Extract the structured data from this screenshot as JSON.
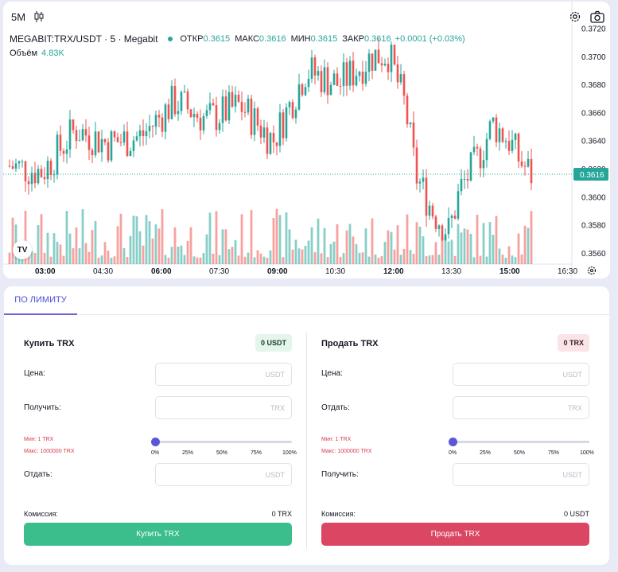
{
  "toolbar": {
    "interval": "5M",
    "candles_icon": "candlestick-icon",
    "settings_icon": "gear-icon",
    "snapshot_icon": "camera-icon"
  },
  "legend": {
    "symbol": "MEGABIT:TRX/USDT · 5 · Megabit",
    "open_label": "ОТКР",
    "open_value": "0.3615",
    "high_label": "МАКС",
    "high_value": "0.3616",
    "low_label": "МИН",
    "low_value": "0.3615",
    "close_label": "ЗАКР",
    "close_value": "0.3616",
    "change": "+0.0001 (+0.03%)",
    "volume_label": "Объём",
    "volume_value": "4.83K"
  },
  "colors": {
    "up": "#26a69a",
    "down": "#ef5350",
    "buy_button": "#3bbd8c",
    "sell_button": "#db4663",
    "accent": "#5b56d8"
  },
  "chart_data": {
    "type": "candlestick",
    "price_axis_labels": [
      "0.3720",
      "0.3700",
      "0.3680",
      "0.3660",
      "0.3640",
      "0.3620",
      "0.3600",
      "0.3580",
      "0.3560"
    ],
    "ylim": [
      0.3552,
      0.3722
    ],
    "current_price": "0.3616",
    "time_axis_labels": [
      "03:00",
      "04:30",
      "06:00",
      "07:30",
      "09:00",
      "10:30",
      "12:00",
      "13:30",
      "15:00",
      "16:30"
    ],
    "bold_time_labels": [
      "03:00",
      "06:00",
      "09:00",
      "12:00",
      "15:00"
    ],
    "close_path": [
      [
        0.0,
        0.3622
      ],
      [
        0.06,
        0.3618
      ],
      [
        0.12,
        0.3648
      ],
      [
        0.18,
        0.3638
      ],
      [
        0.24,
        0.3643
      ],
      [
        0.3,
        0.3668
      ],
      [
        0.36,
        0.3655
      ],
      [
        0.42,
        0.3665
      ],
      [
        0.48,
        0.364
      ],
      [
        0.54,
        0.369
      ],
      [
        0.6,
        0.368
      ],
      [
        0.66,
        0.37
      ],
      [
        0.69,
        0.3702
      ],
      [
        0.72,
        0.3665
      ],
      [
        0.74,
        0.3615
      ],
      [
        0.77,
        0.359
      ],
      [
        0.8,
        0.3575
      ],
      [
        0.82,
        0.3605
      ],
      [
        0.85,
        0.3625
      ],
      [
        0.88,
        0.3652
      ],
      [
        0.91,
        0.364
      ],
      [
        0.93,
        0.3625
      ],
      [
        0.95,
        0.3616
      ]
    ]
  },
  "tabs": [
    {
      "label": "ПО ЛИМИТУ",
      "active": true
    }
  ],
  "buy": {
    "title": "Купить TRX",
    "balance": "0 USDT",
    "price_label": "Цена:",
    "price_unit": "USDT",
    "receive_label": "Получить:",
    "receive_unit": "TRX",
    "min": "Мин: 1 TRX",
    "max": "Макс: 1000000 TRX",
    "slider_value": 0,
    "ticks": [
      "0%",
      "25%",
      "50%",
      "75%",
      "100%"
    ],
    "give_label": "Отдать:",
    "give_unit": "USDT",
    "fee_label": "Комиссия:",
    "fee_value": "0 TRX",
    "button": "Купить TRX"
  },
  "sell": {
    "title": "Продать TRX",
    "balance": "0 TRX",
    "price_label": "Цена:",
    "price_unit": "USDT",
    "give_label": "Отдать:",
    "give_unit": "TRX",
    "min": "Мин: 1 TRX",
    "max": "Макс: 1000000 TRX",
    "slider_value": 0,
    "ticks": [
      "0%",
      "25%",
      "50%",
      "75%",
      "100%"
    ],
    "receive_label": "Получить:",
    "receive_unit": "USDT",
    "fee_label": "Комиссия:",
    "fee_value": "0 USDT",
    "button": "Продать TRX"
  }
}
